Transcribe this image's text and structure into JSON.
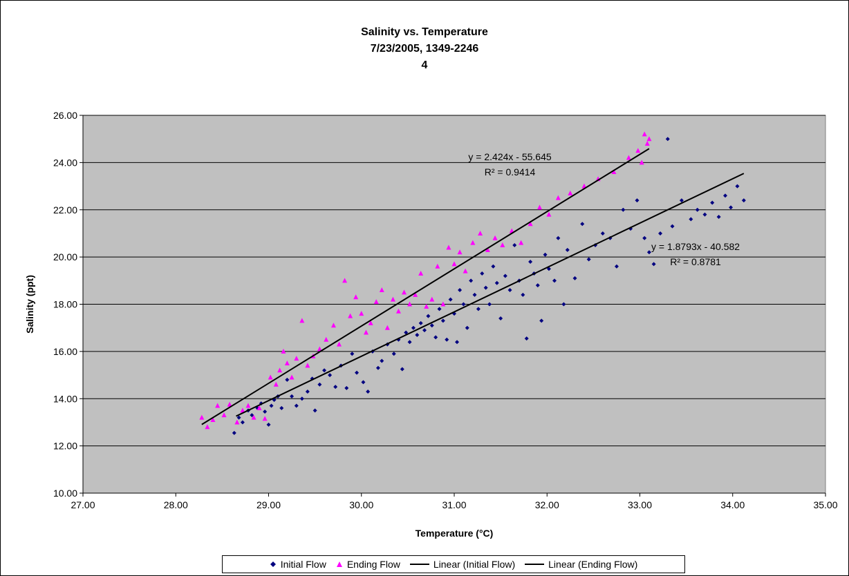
{
  "chart_data": {
    "type": "scatter",
    "title_lines": [
      "Salinity vs. Temperature",
      "7/23/2005, 1349-2246",
      "4"
    ],
    "xlabel": "Temperature (°C)",
    "ylabel": "Salinity (ppt)",
    "xlim": [
      27,
      35
    ],
    "ylim": [
      10,
      26
    ],
    "x_ticks": [
      "27.00",
      "28.00",
      "29.00",
      "30.00",
      "31.00",
      "32.00",
      "33.00",
      "34.00",
      "35.00"
    ],
    "y_ticks": [
      "10.00",
      "12.00",
      "14.00",
      "16.00",
      "18.00",
      "20.00",
      "22.00",
      "24.00",
      "26.00"
    ],
    "gridlines": "horizontal",
    "legend_position": "bottom",
    "plot_background": "#C0C0C0",
    "series": [
      {
        "name": "Initial Flow",
        "marker": "diamond",
        "color": "#000080",
        "points": [
          [
            28.63,
            12.55
          ],
          [
            28.68,
            13.2
          ],
          [
            28.72,
            13.0
          ],
          [
            28.78,
            13.5
          ],
          [
            28.82,
            13.3
          ],
          [
            28.88,
            13.6
          ],
          [
            28.92,
            13.8
          ],
          [
            28.96,
            13.45
          ],
          [
            29.0,
            12.9
          ],
          [
            29.03,
            13.7
          ],
          [
            29.06,
            13.95
          ],
          [
            29.1,
            14.1
          ],
          [
            29.14,
            13.6
          ],
          [
            29.2,
            14.8
          ],
          [
            29.25,
            14.1
          ],
          [
            29.3,
            13.7
          ],
          [
            29.36,
            14.0
          ],
          [
            29.42,
            14.3
          ],
          [
            29.47,
            14.85
          ],
          [
            29.5,
            13.5
          ],
          [
            29.55,
            14.6
          ],
          [
            29.6,
            15.2
          ],
          [
            29.66,
            15.0
          ],
          [
            29.72,
            14.5
          ],
          [
            29.78,
            15.4
          ],
          [
            29.84,
            14.45
          ],
          [
            29.9,
            15.9
          ],
          [
            29.95,
            15.1
          ],
          [
            30.02,
            14.7
          ],
          [
            30.07,
            14.3
          ],
          [
            30.12,
            16.0
          ],
          [
            30.18,
            15.3
          ],
          [
            30.22,
            15.6
          ],
          [
            30.28,
            16.3
          ],
          [
            30.35,
            15.9
          ],
          [
            30.4,
            16.5
          ],
          [
            30.44,
            15.25
          ],
          [
            30.48,
            16.8
          ],
          [
            30.52,
            16.4
          ],
          [
            30.56,
            17.0
          ],
          [
            30.6,
            16.7
          ],
          [
            30.64,
            17.2
          ],
          [
            30.68,
            16.9
          ],
          [
            30.72,
            17.5
          ],
          [
            30.76,
            17.1
          ],
          [
            30.8,
            16.6
          ],
          [
            30.84,
            17.8
          ],
          [
            30.88,
            17.3
          ],
          [
            30.92,
            16.5
          ],
          [
            30.96,
            18.2
          ],
          [
            31.0,
            17.6
          ],
          [
            31.03,
            16.4
          ],
          [
            31.06,
            18.6
          ],
          [
            31.1,
            18.0
          ],
          [
            31.14,
            17.0
          ],
          [
            31.18,
            19.0
          ],
          [
            31.22,
            18.4
          ],
          [
            31.26,
            17.8
          ],
          [
            31.3,
            19.3
          ],
          [
            31.34,
            18.7
          ],
          [
            31.38,
            18.0
          ],
          [
            31.42,
            19.6
          ],
          [
            31.46,
            18.9
          ],
          [
            31.5,
            17.4
          ],
          [
            31.55,
            19.2
          ],
          [
            31.6,
            18.6
          ],
          [
            31.65,
            20.5
          ],
          [
            31.7,
            19.0
          ],
          [
            31.74,
            18.4
          ],
          [
            31.78,
            16.55
          ],
          [
            31.82,
            19.8
          ],
          [
            31.86,
            19.3
          ],
          [
            31.9,
            18.8
          ],
          [
            31.94,
            17.3
          ],
          [
            31.98,
            20.1
          ],
          [
            32.02,
            19.5
          ],
          [
            32.08,
            19.0
          ],
          [
            32.12,
            20.8
          ],
          [
            32.18,
            18.0
          ],
          [
            32.22,
            20.3
          ],
          [
            32.3,
            19.1
          ],
          [
            32.38,
            21.4
          ],
          [
            32.45,
            19.9
          ],
          [
            32.52,
            20.5
          ],
          [
            32.6,
            21.0
          ],
          [
            32.68,
            20.8
          ],
          [
            32.75,
            19.6
          ],
          [
            32.82,
            22.0
          ],
          [
            32.9,
            21.2
          ],
          [
            32.97,
            22.4
          ],
          [
            33.05,
            20.8
          ],
          [
            33.1,
            20.2
          ],
          [
            33.15,
            19.7
          ],
          [
            33.22,
            21.0
          ],
          [
            33.3,
            25.0
          ],
          [
            33.35,
            21.3
          ],
          [
            33.45,
            22.4
          ],
          [
            33.55,
            21.6
          ],
          [
            33.62,
            22.0
          ],
          [
            33.7,
            21.8
          ],
          [
            33.78,
            22.3
          ],
          [
            33.85,
            21.7
          ],
          [
            33.92,
            22.6
          ],
          [
            33.98,
            22.1
          ],
          [
            34.05,
            23.0
          ],
          [
            34.12,
            22.4
          ]
        ]
      },
      {
        "name": "Ending Flow",
        "marker": "triangle",
        "color": "#FF00FF",
        "points": [
          [
            28.28,
            13.2
          ],
          [
            28.34,
            12.8
          ],
          [
            28.4,
            13.1
          ],
          [
            28.45,
            13.7
          ],
          [
            28.52,
            13.3
          ],
          [
            28.58,
            13.75
          ],
          [
            28.66,
            13.0
          ],
          [
            28.72,
            13.5
          ],
          [
            28.78,
            13.7
          ],
          [
            28.84,
            13.2
          ],
          [
            28.9,
            13.6
          ],
          [
            28.96,
            13.15
          ],
          [
            29.02,
            14.9
          ],
          [
            29.08,
            14.6
          ],
          [
            29.12,
            15.2
          ],
          [
            29.16,
            16.0
          ],
          [
            29.2,
            15.5
          ],
          [
            29.25,
            14.9
          ],
          [
            29.3,
            15.7
          ],
          [
            29.36,
            17.3
          ],
          [
            29.42,
            15.4
          ],
          [
            29.48,
            15.8
          ],
          [
            29.55,
            16.1
          ],
          [
            29.62,
            16.5
          ],
          [
            29.7,
            17.1
          ],
          [
            29.76,
            16.3
          ],
          [
            29.82,
            19.0
          ],
          [
            29.88,
            17.5
          ],
          [
            29.94,
            18.3
          ],
          [
            30.0,
            17.6
          ],
          [
            30.05,
            16.8
          ],
          [
            30.1,
            17.2
          ],
          [
            30.16,
            18.1
          ],
          [
            30.22,
            18.6
          ],
          [
            30.28,
            17.0
          ],
          [
            30.34,
            18.2
          ],
          [
            30.4,
            17.7
          ],
          [
            30.46,
            18.5
          ],
          [
            30.52,
            18.0
          ],
          [
            30.58,
            18.4
          ],
          [
            30.64,
            19.3
          ],
          [
            30.7,
            17.9
          ],
          [
            30.76,
            18.2
          ],
          [
            30.82,
            19.6
          ],
          [
            30.88,
            18.0
          ],
          [
            30.94,
            20.4
          ],
          [
            31.0,
            19.7
          ],
          [
            31.06,
            20.2
          ],
          [
            31.12,
            19.4
          ],
          [
            31.2,
            20.6
          ],
          [
            31.28,
            21.0
          ],
          [
            31.36,
            20.3
          ],
          [
            31.44,
            20.8
          ],
          [
            31.52,
            20.5
          ],
          [
            31.62,
            21.1
          ],
          [
            31.72,
            20.6
          ],
          [
            31.82,
            21.4
          ],
          [
            31.92,
            22.1
          ],
          [
            32.02,
            21.8
          ],
          [
            32.12,
            22.5
          ],
          [
            32.25,
            22.7
          ],
          [
            32.4,
            23.0
          ],
          [
            32.55,
            23.3
          ],
          [
            32.72,
            23.6
          ],
          [
            32.88,
            24.2
          ],
          [
            32.98,
            24.5
          ],
          [
            33.02,
            24.0
          ],
          [
            33.05,
            25.2
          ],
          [
            33.08,
            24.8
          ],
          [
            33.1,
            25.0
          ]
        ]
      },
      {
        "name": "Linear (Initial Flow)",
        "type": "line",
        "color": "#000000",
        "x_range": [
          28.65,
          34.12
        ],
        "slope": 1.8793,
        "intercept": -40.582
      },
      {
        "name": "Linear (Ending Flow)",
        "type": "line",
        "color": "#000000",
        "x_range": [
          28.28,
          33.1
        ],
        "slope": 2.424,
        "intercept": -55.645
      }
    ],
    "annotations": [
      {
        "lines": [
          "y = 2.424x - 55.645",
          "R² = 0.9414"
        ],
        "x": 31.6,
        "y": 24.1
      },
      {
        "lines": [
          "y = 1.8793x - 40.582",
          "R² = 0.8781"
        ],
        "x": 33.6,
        "y": 20.3
      }
    ]
  }
}
